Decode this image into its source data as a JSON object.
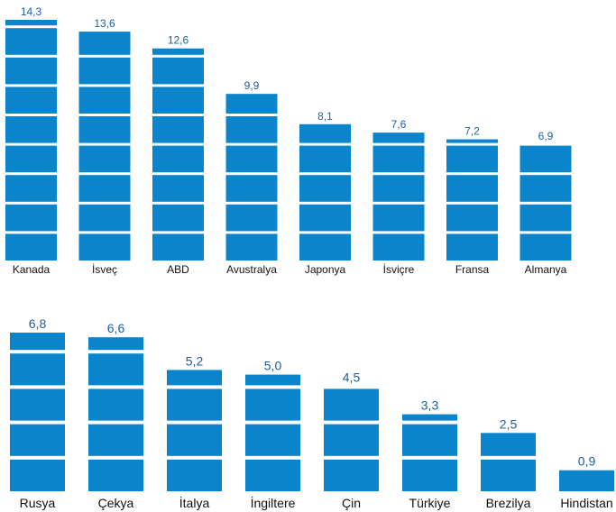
{
  "chart_data": [
    {
      "type": "bar",
      "categories": [
        "Kanada",
        "İsveç",
        "ABD",
        "Avustralya",
        "Japonya",
        "İsviçre",
        "Fransa",
        "Almanya"
      ],
      "values": [
        14.3,
        13.6,
        12.6,
        9.9,
        8.1,
        7.6,
        7.2,
        6.9
      ],
      "value_labels": [
        "14,3",
        "13,6",
        "12,6",
        "9,9",
        "8,1",
        "7,6",
        "7,2",
        "6,9"
      ],
      "title": "",
      "xlabel": "",
      "ylabel": "",
      "ylim": [
        0,
        14.3
      ],
      "grid": false,
      "bar_style": "stacked-segments",
      "bar_color": "#0a85cc",
      "label_color": "#1f5fa0"
    },
    {
      "type": "bar",
      "categories": [
        "Rusya",
        "Çekya",
        "İtalya",
        "İngiltere",
        "Çin",
        "Türkiye",
        "Brezilya",
        "Hindistan"
      ],
      "values": [
        6.8,
        6.6,
        5.2,
        5.0,
        4.5,
        3.3,
        2.5,
        0.9
      ],
      "value_labels": [
        "6,8",
        "6,6",
        "5,2",
        "5,0",
        "4,5",
        "3,3",
        "2,5",
        "0,9"
      ],
      "title": "",
      "xlabel": "",
      "ylabel": "",
      "ylim": [
        0,
        6.8
      ],
      "grid": false,
      "bar_style": "stacked-segments",
      "bar_color": "#0a85cc",
      "label_color": "#1f5fa0"
    }
  ]
}
